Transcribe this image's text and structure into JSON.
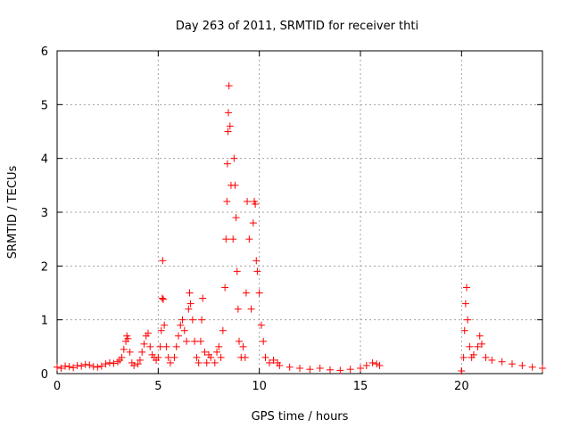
{
  "chart_data": {
    "type": "scatter",
    "title": "Day 263 of 2011, SRMTID for receiver thti",
    "xlabel": "GPS time / hours",
    "ylabel": "SRMTID / TECUs",
    "xlim": [
      0,
      24
    ],
    "ylim": [
      0,
      6
    ],
    "xticks": [
      {
        "value": 0,
        "label": "0"
      },
      {
        "value": 5,
        "label": "5"
      },
      {
        "value": 10,
        "label": "10"
      },
      {
        "value": 15,
        "label": "15"
      },
      {
        "value": 20,
        "label": "20"
      }
    ],
    "yticks": [
      {
        "value": 0,
        "label": "0"
      },
      {
        "value": 1,
        "label": "1"
      },
      {
        "value": 2,
        "label": "2"
      },
      {
        "value": 3,
        "label": "3"
      },
      {
        "value": 4,
        "label": "4"
      },
      {
        "value": 5,
        "label": "5"
      },
      {
        "value": 6,
        "label": "6"
      }
    ],
    "grid": true,
    "marker": "+",
    "marker_color": "#ff0000",
    "series": [
      {
        "points": [
          [
            0.0,
            0.12
          ],
          [
            0.2,
            0.1
          ],
          [
            0.4,
            0.14
          ],
          [
            0.6,
            0.13
          ],
          [
            0.8,
            0.11
          ],
          [
            1.0,
            0.15
          ],
          [
            1.2,
            0.14
          ],
          [
            1.4,
            0.17
          ],
          [
            1.6,
            0.16
          ],
          [
            1.8,
            0.13
          ],
          [
            2.0,
            0.12
          ],
          [
            2.2,
            0.14
          ],
          [
            2.4,
            0.18
          ],
          [
            2.6,
            0.2
          ],
          [
            2.8,
            0.19
          ],
          [
            3.0,
            0.22
          ],
          [
            3.1,
            0.25
          ],
          [
            3.2,
            0.3
          ],
          [
            3.3,
            0.45
          ],
          [
            3.4,
            0.6
          ],
          [
            3.45,
            0.7
          ],
          [
            3.5,
            0.65
          ],
          [
            3.6,
            0.4
          ],
          [
            3.7,
            0.2
          ],
          [
            3.8,
            0.15
          ],
          [
            4.0,
            0.18
          ],
          [
            4.1,
            0.25
          ],
          [
            4.2,
            0.4
          ],
          [
            4.3,
            0.55
          ],
          [
            4.4,
            0.7
          ],
          [
            4.5,
            0.75
          ],
          [
            4.6,
            0.5
          ],
          [
            4.7,
            0.35
          ],
          [
            4.8,
            0.3
          ],
          [
            4.9,
            0.25
          ],
          [
            5.0,
            0.3
          ],
          [
            5.1,
            0.5
          ],
          [
            5.15,
            0.8
          ],
          [
            5.2,
            1.4
          ],
          [
            5.22,
            2.1
          ],
          [
            5.25,
            1.38
          ],
          [
            5.3,
            0.9
          ],
          [
            5.4,
            0.5
          ],
          [
            5.5,
            0.3
          ],
          [
            5.6,
            0.2
          ],
          [
            5.8,
            0.3
          ],
          [
            5.9,
            0.5
          ],
          [
            6.0,
            0.7
          ],
          [
            6.1,
            0.9
          ],
          [
            6.2,
            1.0
          ],
          [
            6.3,
            0.8
          ],
          [
            6.4,
            0.6
          ],
          [
            6.5,
            1.2
          ],
          [
            6.55,
            1.5
          ],
          [
            6.6,
            1.3
          ],
          [
            6.7,
            1.0
          ],
          [
            6.8,
            0.6
          ],
          [
            6.9,
            0.3
          ],
          [
            7.0,
            0.2
          ],
          [
            7.1,
            0.6
          ],
          [
            7.15,
            1.0
          ],
          [
            7.2,
            1.4
          ],
          [
            7.3,
            0.4
          ],
          [
            7.4,
            0.2
          ],
          [
            7.5,
            0.35
          ],
          [
            7.6,
            0.3
          ],
          [
            7.8,
            0.2
          ],
          [
            7.9,
            0.4
          ],
          [
            8.0,
            0.5
          ],
          [
            8.1,
            0.3
          ],
          [
            8.2,
            0.8
          ],
          [
            8.3,
            1.6
          ],
          [
            8.35,
            2.5
          ],
          [
            8.4,
            3.2
          ],
          [
            8.42,
            3.9
          ],
          [
            8.45,
            4.5
          ],
          [
            8.47,
            4.85
          ],
          [
            8.5,
            5.35
          ],
          [
            8.55,
            4.6
          ],
          [
            8.6,
            3.5
          ],
          [
            8.7,
            2.5
          ],
          [
            8.75,
            4.0
          ],
          [
            8.8,
            3.5
          ],
          [
            8.85,
            2.9
          ],
          [
            8.9,
            1.9
          ],
          [
            8.95,
            1.2
          ],
          [
            9.0,
            0.6
          ],
          [
            9.1,
            0.3
          ],
          [
            9.2,
            0.5
          ],
          [
            9.3,
            0.3
          ],
          [
            9.35,
            1.5
          ],
          [
            9.4,
            3.2
          ],
          [
            9.5,
            2.5
          ],
          [
            9.6,
            1.2
          ],
          [
            9.7,
            2.8
          ],
          [
            9.75,
            3.2
          ],
          [
            9.8,
            3.15
          ],
          [
            9.85,
            2.1
          ],
          [
            9.9,
            1.9
          ],
          [
            10.0,
            1.5
          ],
          [
            10.1,
            0.9
          ],
          [
            10.2,
            0.6
          ],
          [
            10.3,
            0.3
          ],
          [
            10.5,
            0.2
          ],
          [
            10.7,
            0.25
          ],
          [
            10.9,
            0.2
          ],
          [
            11.0,
            0.15
          ],
          [
            11.5,
            0.12
          ],
          [
            12.0,
            0.1
          ],
          [
            12.5,
            0.08
          ],
          [
            13.0,
            0.1
          ],
          [
            13.5,
            0.07
          ],
          [
            14.0,
            0.06
          ],
          [
            14.5,
            0.08
          ],
          [
            15.0,
            0.1
          ],
          [
            15.3,
            0.15
          ],
          [
            15.6,
            0.2
          ],
          [
            15.8,
            0.18
          ],
          [
            15.95,
            0.15
          ],
          [
            20.0,
            0.05
          ],
          [
            20.1,
            0.3
          ],
          [
            20.15,
            0.8
          ],
          [
            20.2,
            1.3
          ],
          [
            20.25,
            1.6
          ],
          [
            20.3,
            1.0
          ],
          [
            20.4,
            0.5
          ],
          [
            20.5,
            0.3
          ],
          [
            20.6,
            0.35
          ],
          [
            20.8,
            0.5
          ],
          [
            20.9,
            0.7
          ],
          [
            21.0,
            0.55
          ],
          [
            21.2,
            0.3
          ],
          [
            21.5,
            0.25
          ],
          [
            22.0,
            0.22
          ],
          [
            22.5,
            0.18
          ],
          [
            23.0,
            0.15
          ],
          [
            23.5,
            0.12
          ],
          [
            24.0,
            0.1
          ]
        ]
      }
    ]
  }
}
